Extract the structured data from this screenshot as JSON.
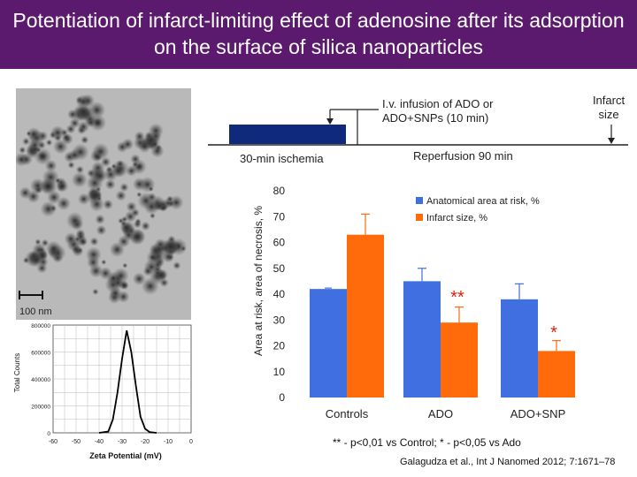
{
  "title": "Potentiation of infarct-limiting effect of adenosine after its adsorption on the surface of silica nanoparticles",
  "protocol": {
    "infusion_label_line1": "I.v. infusion of ADO or",
    "infusion_label_line2": "ADO+SNPs (10 min)",
    "infarct_label_line1": "Infarct",
    "infarct_label_line2": "size",
    "ischemia_label": "30-min ischemia",
    "reperfusion_label": "Reperfusion 90 min"
  },
  "micrograph": {
    "scale_label": "100 nm"
  },
  "chart_data": [
    {
      "type": "bar",
      "ylabel": "Area at risk, area of necrosis, %",
      "ylim": [
        0,
        80
      ],
      "yticks": [
        "0",
        "10",
        "20",
        "30",
        "40",
        "50",
        "60",
        "70",
        "80"
      ],
      "categories": [
        "Controls",
        "ADO",
        "ADO+SNP"
      ],
      "series": [
        {
          "name": "Anatomical area at risk, %",
          "color": "#3f6fe0",
          "values": [
            42,
            45,
            38
          ],
          "errors": [
            0,
            5,
            6
          ]
        },
        {
          "name": "Infarct size, %",
          "color": "#ff6a0a",
          "values": [
            63,
            29,
            18
          ],
          "errors": [
            8,
            6,
            4
          ]
        }
      ],
      "significance": [
        "",
        "**",
        "*"
      ],
      "legend_position": "top-right",
      "footnote": "** - p<0,01 vs Control; * - p<0,05 vs Ado"
    },
    {
      "type": "line",
      "xlabel": "Zeta Potential (mV)",
      "ylabel": "Total Counts",
      "xlim": [
        -60,
        0
      ],
      "ylim": [
        0,
        800000
      ],
      "xticks": [
        "-60",
        "-50",
        "-40",
        "-30",
        "-20",
        "-10",
        "0"
      ],
      "yticks": [
        "0",
        "200000",
        "400000",
        "600000",
        "800000"
      ],
      "x": [
        -40,
        -36,
        -34,
        -32,
        -30,
        -28,
        -26,
        -24,
        -22,
        -20,
        -18,
        -15
      ],
      "y": [
        0,
        10000,
        100000,
        300000,
        550000,
        760000,
        600000,
        350000,
        120000,
        30000,
        5000,
        0
      ],
      "grid": true
    }
  ],
  "citation": "Galagudza et al., Int J Nanomed 2012; 7:1671–78"
}
